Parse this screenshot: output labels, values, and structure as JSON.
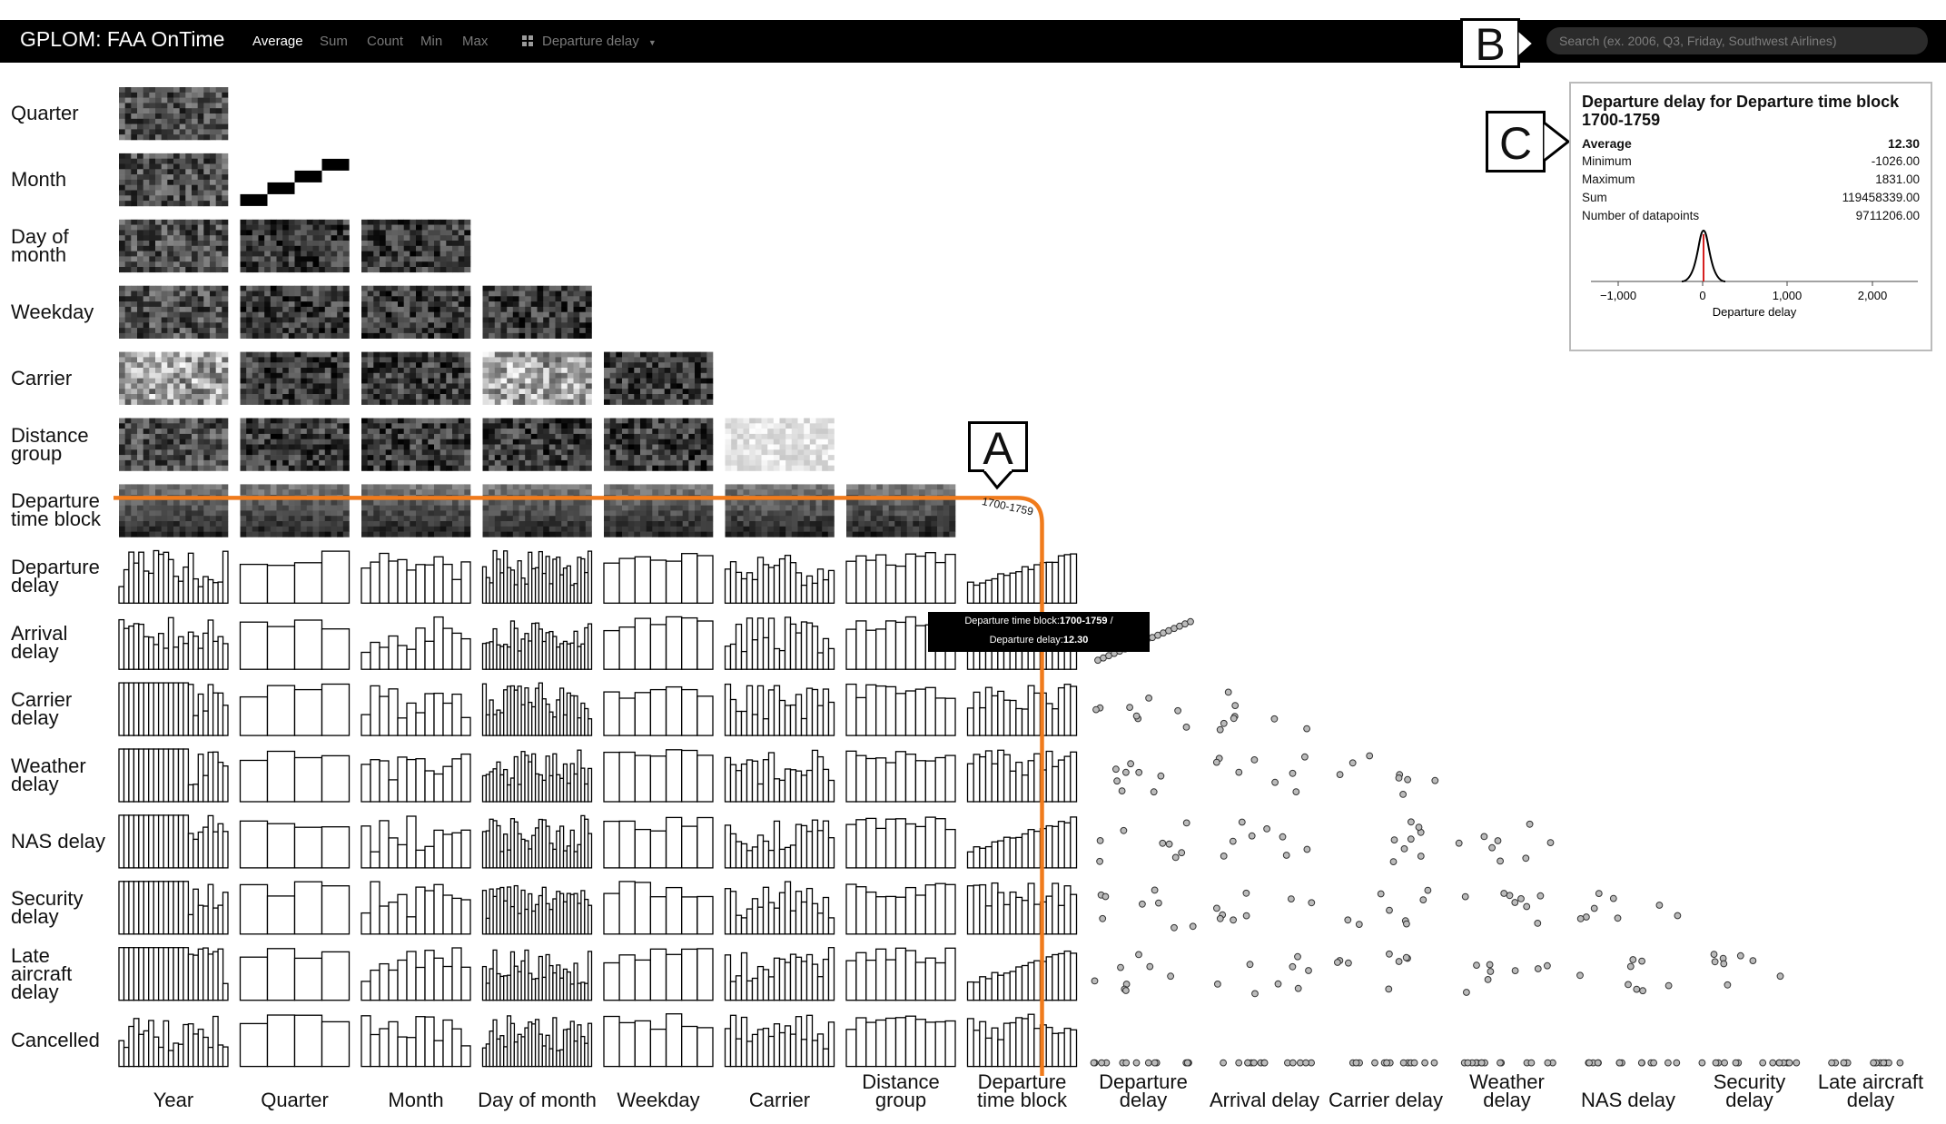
{
  "app": {
    "title": "GPLOM: FAA OnTime",
    "aggregations": [
      "Average",
      "Sum",
      "Count",
      "Min",
      "Max"
    ],
    "selected_aggregation": "Average",
    "measure_dropdown": "Departure delay",
    "search_placeholder": "Search (ex. 2006, Q3, Friday, Southwest Airlines)"
  },
  "callouts": {
    "a": "A",
    "b": "B",
    "c": "C"
  },
  "dimensions": [
    "Year",
    "Quarter",
    "Month",
    "Day of month",
    "Weekday",
    "Carrier",
    "Distance group",
    "Departure time block"
  ],
  "row_labels": [
    [
      "Quarter"
    ],
    [
      "Month"
    ],
    [
      "Day of",
      "month"
    ],
    [
      "Weekday"
    ],
    [
      "Carrier"
    ],
    [
      "Distance",
      "group"
    ],
    [
      "Departure",
      "time block"
    ],
    [
      "Departure",
      "delay"
    ],
    [
      "Arrival",
      "delay"
    ],
    [
      "Carrier",
      "delay"
    ],
    [
      "Weather",
      "delay"
    ],
    [
      "NAS delay"
    ],
    [
      "Security",
      "delay"
    ],
    [
      "Late",
      "aircraft",
      "delay"
    ],
    [
      "Cancelled"
    ]
  ],
  "column_labels": [
    [
      "Year"
    ],
    [
      "Quarter"
    ],
    [
      "Month"
    ],
    [
      "Day of month"
    ],
    [
      "Weekday"
    ],
    [
      "Carrier"
    ],
    [
      "Distance",
      "group"
    ],
    [
      "Departure",
      "time block"
    ],
    [
      "Departure",
      "delay"
    ],
    [
      "Arrival delay"
    ],
    [
      "Carrier delay"
    ],
    [
      "Weather",
      "delay"
    ],
    [
      "NAS delay"
    ],
    [
      "Security",
      "delay"
    ],
    [
      "Late aircraft",
      "delay"
    ]
  ],
  "highlight": {
    "label": "1700-1759",
    "color": "#f07b1c"
  },
  "tooltip": {
    "line1_prefix": "Departure time block:",
    "line1_value": "1700-1759",
    "line1_suffix": " /",
    "line2_prefix": "Departure delay:",
    "line2_value": "12.30"
  },
  "detail": {
    "title": "Departure delay for Departure time block 1700-1759",
    "average_label": "Average",
    "average_value": "12.30",
    "stats": [
      {
        "label": "Minimum",
        "value": "-1026.00"
      },
      {
        "label": "Maximum",
        "value": "1831.00"
      },
      {
        "label": "Sum",
        "value": "119458339.00"
      },
      {
        "label": "Number of datapoints",
        "value": "9711206.00"
      }
    ],
    "axis_ticks": [
      "−1,000",
      "0",
      "1,000",
      "2,000"
    ],
    "axis_label": "Departure delay"
  }
}
